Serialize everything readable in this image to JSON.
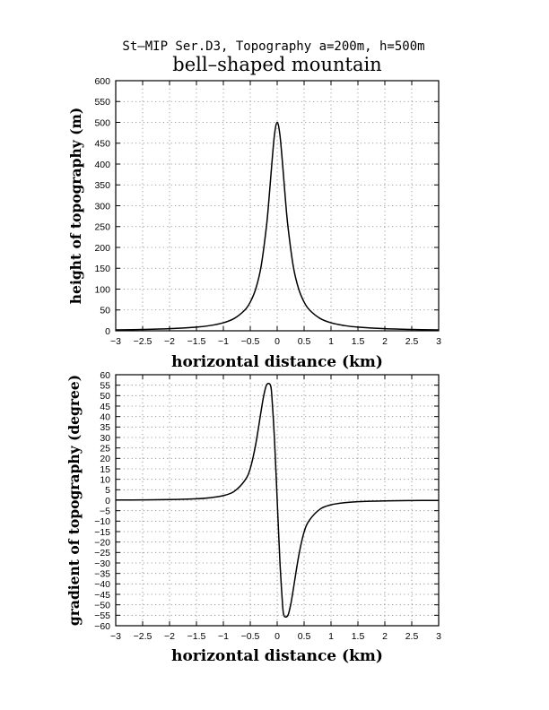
{
  "super_title": "St–MIP Ser.D3, Topography a=200m, h=500m",
  "main_title": "bell–shaped mountain",
  "chart_data": [
    {
      "type": "line",
      "name": "topography height",
      "xlabel": "horizontal distance (km)",
      "ylabel": "height of topography (m)",
      "xlim": [
        -3,
        3
      ],
      "ylim": [
        0,
        600
      ],
      "x_ticks": [
        -3,
        -2.5,
        -2,
        -1.5,
        -1,
        -0.5,
        0,
        0.5,
        1,
        1.5,
        2,
        2.5,
        3
      ],
      "x_tick_labels": [
        "−3",
        "−2.5",
        "−2",
        "−1.5",
        "−1",
        "−0.5",
        "0",
        "0.5",
        "1",
        "1.5",
        "2",
        "2.5",
        "3"
      ],
      "y_ticks": [
        0,
        50,
        100,
        150,
        200,
        250,
        300,
        350,
        400,
        450,
        500,
        550,
        600
      ],
      "y_tick_labels": [
        "0",
        "50",
        "100",
        "150",
        "200",
        "250",
        "300",
        "350",
        "400",
        "450",
        "500",
        "550",
        "600"
      ],
      "grid": true,
      "series": [
        {
          "x": [
            -3.0,
            -2.5,
            -2.0,
            -1.5,
            -1.25,
            -1.0,
            -0.8,
            -0.6,
            -0.5,
            -0.4,
            -0.3,
            -0.2,
            -0.15,
            -0.1,
            -0.05,
            0.0,
            0.05,
            0.1,
            0.15,
            0.2,
            0.3,
            0.4,
            0.5,
            0.6,
            0.8,
            1.0,
            1.25,
            1.5,
            2.0,
            2.5,
            3.0
          ],
          "y": [
            2.2,
            3.2,
            5.0,
            8.8,
            12.5,
            19.2,
            29.4,
            50.0,
            69.0,
            100.0,
            153.8,
            250.0,
            320.0,
            400.0,
            470.6,
            500.0,
            470.6,
            400.0,
            320.0,
            250.0,
            153.8,
            100.0,
            69.0,
            50.0,
            29.4,
            19.2,
            12.5,
            8.8,
            5.0,
            3.2,
            2.2
          ]
        }
      ]
    },
    {
      "type": "line",
      "name": "topography gradient",
      "xlabel": "horizontal distance (km)",
      "ylabel": "gradient of topography (degree)",
      "xlim": [
        -3,
        3
      ],
      "ylim": [
        -60,
        60
      ],
      "x_ticks": [
        -3,
        -2.5,
        -2,
        -1.5,
        -1,
        -0.5,
        0,
        0.5,
        1,
        1.5,
        2,
        2.5,
        3
      ],
      "x_tick_labels": [
        "−3",
        "−2.5",
        "−2",
        "−1.5",
        "−1",
        "−0.5",
        "0",
        "0.5",
        "1",
        "1.5",
        "2",
        "2.5",
        "3"
      ],
      "y_ticks": [
        -60,
        -55,
        -50,
        -45,
        -40,
        -35,
        -30,
        -25,
        -20,
        -15,
        -10,
        -5,
        0,
        5,
        10,
        15,
        20,
        25,
        30,
        35,
        40,
        45,
        50,
        55,
        60
      ],
      "y_tick_labels": [
        "−60",
        "−55",
        "−50",
        "−45",
        "−40",
        "−35",
        "−30",
        "−25",
        "−20",
        "−15",
        "−10",
        "−5",
        "0",
        "5",
        "10",
        "15",
        "20",
        "25",
        "30",
        "35",
        "40",
        "45",
        "50",
        "55",
        "60"
      ],
      "grid": true,
      "series": [
        {
          "x": [
            -3.0,
            -2.5,
            -2.0,
            -1.5,
            -1.25,
            -1.0,
            -0.8,
            -0.6,
            -0.5,
            -0.4,
            -0.3,
            -0.25,
            -0.2,
            -0.15,
            -0.12,
            -0.1,
            -0.05,
            0.0,
            0.05,
            0.1,
            0.12,
            0.15,
            0.2,
            0.25,
            0.3,
            0.4,
            0.5,
            0.6,
            0.8,
            1.0,
            1.25,
            1.5,
            2.0,
            2.5,
            3.0
          ],
          "y": [
            0.1,
            0.15,
            0.3,
            0.7,
            1.2,
            2.2,
            4.2,
            9.5,
            15.2,
            26.6,
            42.5,
            50.0,
            55.0,
            55.8,
            54.5,
            50.0,
            29.0,
            0.0,
            -29.0,
            -50.0,
            -54.5,
            -55.8,
            -55.0,
            -50.0,
            -42.5,
            -26.6,
            -15.2,
            -9.5,
            -4.2,
            -2.2,
            -1.2,
            -0.7,
            -0.3,
            -0.15,
            -0.1
          ]
        }
      ]
    }
  ]
}
